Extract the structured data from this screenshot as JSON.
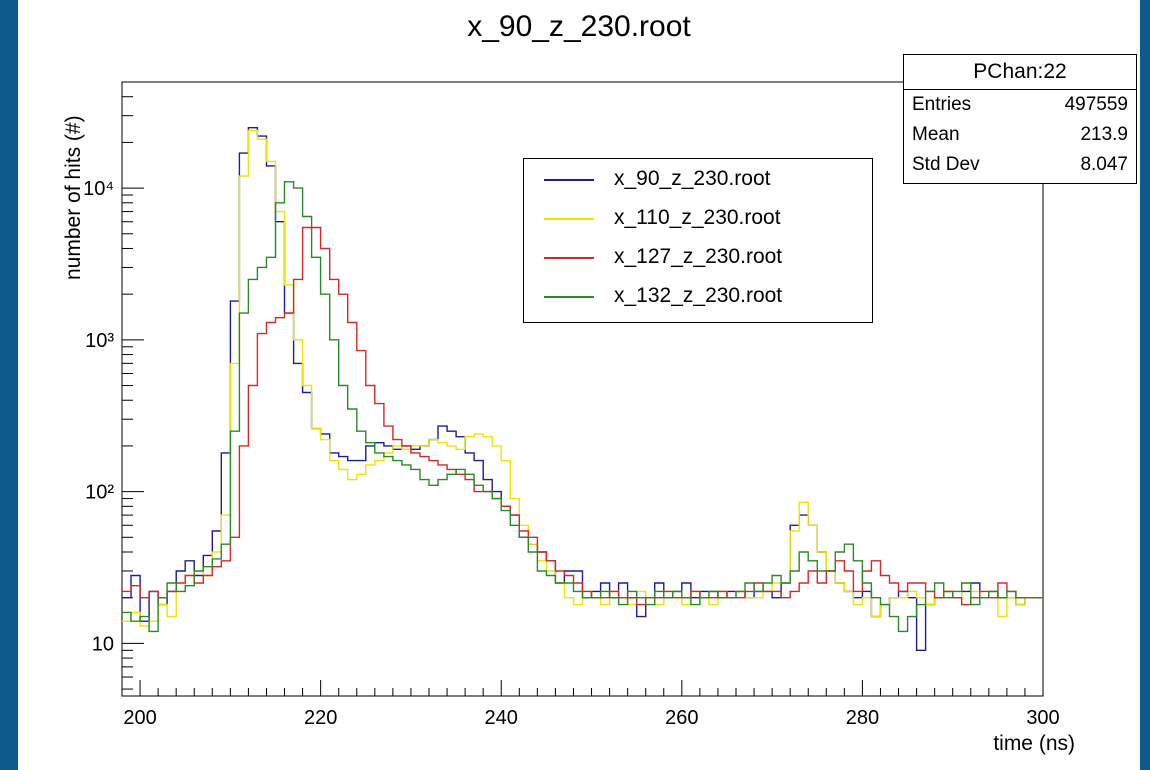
{
  "chart_data": {
    "type": "line",
    "title": "x_90_z_230.root",
    "xlabel": "time (ns)",
    "ylabel": "number of hits (#)",
    "xlim": [
      198,
      300
    ],
    "ylim": [
      4.5,
      50000
    ],
    "yscale": "log",
    "grid": false,
    "x_ticks": [
      "200",
      "220",
      "240",
      "260",
      "280",
      "300"
    ],
    "y_ticks": [
      "10",
      "10²",
      "10³",
      "10⁴"
    ],
    "legend_position": "top-center",
    "bin_start": 198,
    "bin_width": 1,
    "series": [
      {
        "name": "x_90_z_230.root",
        "color": "#1c1c9c",
        "values": [
          20,
          28,
          14,
          22,
          18,
          22,
          30,
          35,
          28,
          38,
          55,
          180,
          1800,
          17000,
          25000,
          22000,
          14000,
          6000,
          1500,
          700,
          450,
          260,
          240,
          180,
          170,
          160,
          160,
          200,
          210,
          200,
          190,
          200,
          190,
          200,
          220,
          270,
          250,
          230,
          180,
          160,
          120,
          100,
          80,
          70,
          50,
          45,
          40,
          35,
          25,
          30,
          30,
          20,
          22,
          25,
          20,
          25,
          20,
          15,
          20,
          25,
          20,
          22,
          25,
          20,
          22,
          22,
          20,
          22,
          22,
          20,
          22,
          22,
          20,
          25,
          60,
          70,
          60,
          40,
          30,
          25,
          22,
          20,
          22,
          15,
          18,
          20,
          22,
          20,
          9,
          18,
          20,
          22,
          20,
          22,
          25,
          20,
          22,
          20,
          20,
          18,
          20,
          20
        ]
      },
      {
        "name": "x_110_z_230.root",
        "color": "#e8e800",
        "values": [
          14,
          16,
          13,
          14,
          18,
          15,
          22,
          28,
          30,
          28,
          40,
          70,
          700,
          12000,
          24000,
          21000,
          15000,
          7000,
          2300,
          1000,
          500,
          260,
          220,
          160,
          140,
          120,
          130,
          150,
          160,
          180,
          200,
          190,
          200,
          200,
          220,
          210,
          200,
          190,
          230,
          240,
          230,
          200,
          160,
          90,
          60,
          45,
          35,
          30,
          25,
          20,
          18,
          22,
          20,
          18,
          22,
          20,
          18,
          22,
          20,
          18,
          22,
          20,
          18,
          22,
          20,
          18,
          22,
          20,
          22,
          20,
          20,
          22,
          25,
          25,
          55,
          85,
          60,
          40,
          30,
          25,
          22,
          18,
          20,
          15,
          18,
          20,
          20,
          22,
          20,
          18,
          20,
          22,
          20,
          25,
          22,
          20,
          22,
          15,
          20,
          18,
          20,
          20
        ]
      },
      {
        "name": "x_127_z_230.root",
        "color": "#d62828",
        "values": [
          22,
          24,
          20,
          22,
          20,
          22,
          25,
          28,
          25,
          28,
          32,
          35,
          50,
          200,
          500,
          1100,
          1300,
          1400,
          1500,
          2500,
          5500,
          5500,
          4000,
          2500,
          2000,
          1300,
          850,
          500,
          380,
          270,
          220,
          200,
          180,
          170,
          160,
          150,
          140,
          130,
          120,
          100,
          100,
          90,
          80,
          70,
          55,
          50,
          40,
          35,
          30,
          28,
          25,
          22,
          20,
          20,
          22,
          20,
          20,
          18,
          20,
          20,
          22,
          20,
          20,
          22,
          20,
          20,
          22,
          20,
          20,
          22,
          25,
          22,
          22,
          20,
          22,
          25,
          30,
          25,
          30,
          35,
          30,
          22,
          30,
          35,
          28,
          25,
          22,
          25,
          25,
          22,
          20,
          22,
          20,
          18,
          20,
          22,
          20,
          25,
          22,
          20,
          20,
          20
        ]
      },
      {
        "name": "x_132_z_230.root",
        "color": "#2a8a2a",
        "values": [
          16,
          14,
          15,
          12,
          20,
          25,
          22,
          24,
          30,
          32,
          36,
          45,
          250,
          1500,
          2500,
          3000,
          3500,
          8000,
          11000,
          10000,
          6500,
          3500,
          2000,
          1000,
          500,
          350,
          250,
          210,
          180,
          170,
          160,
          150,
          140,
          120,
          110,
          120,
          130,
          140,
          130,
          110,
          100,
          90,
          75,
          60,
          50,
          40,
          30,
          28,
          25,
          25,
          22,
          20,
          20,
          22,
          20,
          18,
          22,
          20,
          18,
          22,
          20,
          22,
          20,
          18,
          20,
          22,
          20,
          20,
          22,
          25,
          22,
          25,
          28,
          25,
          30,
          40,
          35,
          30,
          30,
          40,
          45,
          35,
          25,
          20,
          18,
          15,
          12,
          15,
          18,
          22,
          25,
          20,
          22,
          25,
          18,
          20,
          22,
          20,
          22,
          20,
          20,
          20
        ]
      }
    ],
    "stats": {
      "title": "PChan:22",
      "rows": [
        {
          "label": "Entries",
          "value": "497559"
        },
        {
          "label": "Mean",
          "value": "213.9"
        },
        {
          "label": "Std Dev",
          "value": "8.047"
        }
      ]
    }
  }
}
